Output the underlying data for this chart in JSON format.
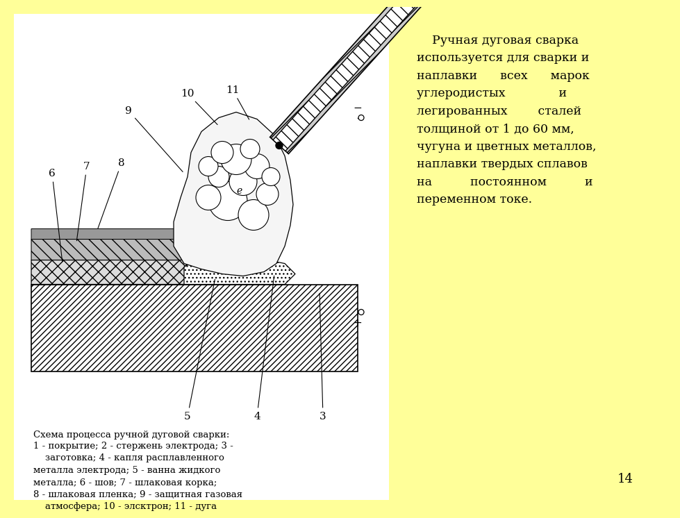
{
  "background_color": "#FFFF99",
  "white_panel_color": "#FFFFFF",
  "right_text_lines": [
    "    Ручная дуговая сварка",
    "используется для сварки и",
    "наплавки      всех      марок",
    "углеродистых              и",
    "легированных        сталей",
    "толщиной от 1 до 60 мм,",
    "чугуна и цветных металлов,",
    "наплавки твердых сплавов",
    "на          постоянном          и",
    "переменном токе."
  ],
  "caption_title": "Схема процесса ручной дуговой сварки:",
  "caption_body": "1 - покрытие; 2 - стержень электрода; 3 -\n    заготовка; 4 - капля расплавленного\nметалла электрода; 5 - ванна жидкого\nметалла; 6 - шов; 7 - шлаковая корка;\n8 - шлаковая пленка; 9 - защитная газовая\n    атмосфера; 10 - элсктрон; 11 - дуга",
  "page_number": "14"
}
